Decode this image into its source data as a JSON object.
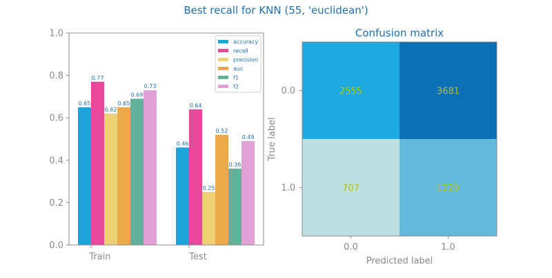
{
  "figure": {
    "title": "Best recall for KNN (55, 'euclidean')"
  },
  "chart_data": [
    {
      "type": "bar",
      "title": "",
      "xlabel": "",
      "ylabel": "",
      "ylim": [
        0,
        1
      ],
      "yticks": [
        "0.0",
        "0.2",
        "0.4",
        "0.6",
        "0.8",
        "1.0"
      ],
      "categories": [
        "Train",
        "Test"
      ],
      "legend_position": "top-right",
      "series": [
        {
          "name": "accuracy",
          "values": [
            0.65,
            0.46
          ],
          "labels": [
            "0.65",
            "0.46"
          ],
          "color": "#1ea4d9"
        },
        {
          "name": "recall",
          "values": [
            0.77,
            0.64
          ],
          "labels": [
            "0.77",
            "0.64"
          ],
          "color": "#e8489a"
        },
        {
          "name": "precision",
          "values": [
            0.62,
            0.25
          ],
          "labels": [
            "0.62",
            "0.25"
          ],
          "color": "#edd275"
        },
        {
          "name": "auc",
          "values": [
            0.65,
            0.52
          ],
          "labels": [
            "0.65",
            "0.52"
          ],
          "color": "#e9aa4a"
        },
        {
          "name": "f1",
          "values": [
            0.69,
            0.36
          ],
          "labels": [
            "0.69",
            "0.36"
          ],
          "color": "#63b09b"
        },
        {
          "name": "f2",
          "values": [
            0.73,
            0.49
          ],
          "labels": [
            "0.73",
            "0.49"
          ],
          "color": "#e0a2d4"
        }
      ]
    },
    {
      "type": "heatmap",
      "title": "Confusion matrix",
      "xlabel": "Predicted label",
      "ylabel": "True label",
      "x_categories": [
        "0.0",
        "1.0"
      ],
      "y_categories": [
        "0.0",
        "1.0"
      ],
      "values": [
        [
          2555,
          3681
        ],
        [
          707,
          1229
        ]
      ],
      "cell_labels": [
        [
          "2555",
          "3681"
        ],
        [
          "707",
          "1229"
        ]
      ],
      "cell_colors": [
        [
          "#1eaae0",
          "#0d6fb5"
        ],
        [
          "#bedfe2",
          "#64badb"
        ]
      ],
      "text_color": "#b5c400"
    }
  ]
}
